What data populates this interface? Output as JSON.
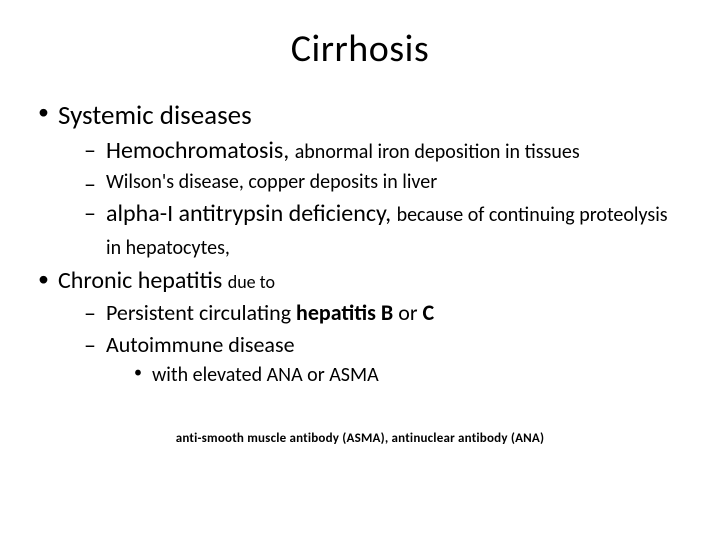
{
  "title": "Cirrhosis",
  "bullets": {
    "b1": "Systemic diseases",
    "b1a_lead": "Hemochromatosis, ",
    "b1a_tail": "abnormal iron deposition in tissues",
    "b1b": "Wilson's disease, copper deposits in liver",
    "b1c_lead": "alpha-I antitrypsin deficiency, ",
    "b1c_mid": "because of ",
    "b1c_tail": "continuing proteolysis in hepatocytes,",
    "b2_lead": "Chronic hepatitis ",
    "b2_tail": "due to",
    "b2a_pre": "Persistent  circulating ",
    "b2a_bold1": "hepatitis B ",
    "b2a_mid": "or ",
    "b2a_bold2": "C",
    "b2b": "Autoimmune disease",
    "b2b_i": "with elevated ANA or ASMA"
  },
  "footnote": "anti-smooth muscle antibody (ASMA), antinuclear antibody (ANA)"
}
